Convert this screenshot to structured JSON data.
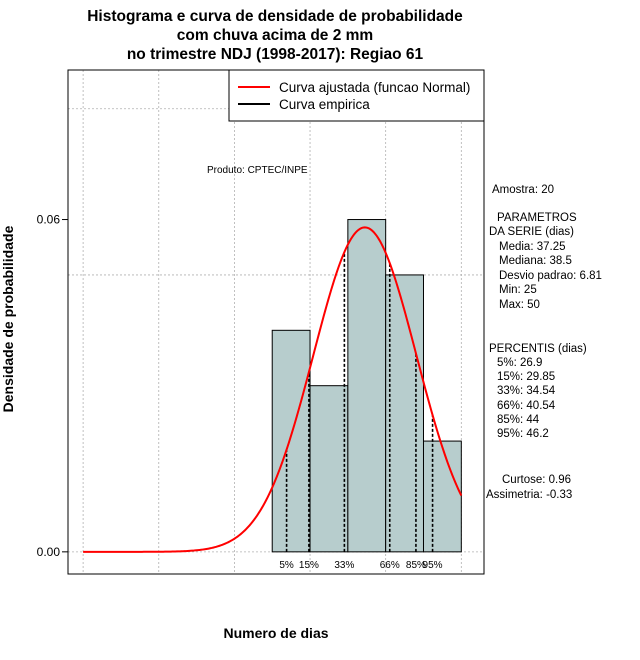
{
  "chart_data": {
    "type": "bar",
    "title_lines": [
      "Histograma e curva de densidade de probabilidade",
      "com chuva acima de 2 mm",
      "no trimestre NDJ (1998-2017): Regiao 61"
    ],
    "xlabel": "Numero de dias",
    "ylabel": "Densidade de probabilidade",
    "xlim": [
      -2,
      53
    ],
    "ylim": [
      -0.004,
      0.087
    ],
    "y_ticks": [
      0.0,
      0.06
    ],
    "y_tick_labels": [
      "0.00",
      "0.06"
    ],
    "grid": true,
    "grid_x": [
      0,
      10,
      20,
      30,
      40,
      50
    ],
    "grid_y": [
      0.0,
      0.05,
      0.08
    ],
    "histogram": {
      "bins": [
        {
          "start": 25,
          "end": 30,
          "density": 0.04
        },
        {
          "start": 30,
          "end": 35,
          "density": 0.03
        },
        {
          "start": 35,
          "end": 40,
          "density": 0.06
        },
        {
          "start": 40,
          "end": 45,
          "density": 0.05
        },
        {
          "start": 45,
          "end": 50,
          "density": 0.02
        }
      ],
      "fill": "#b7cdcd"
    },
    "normal_curve": {
      "mean": 37.25,
      "sd": 6.81,
      "x_range": [
        0,
        50
      ],
      "color": "#ff0000"
    },
    "percentile_lines": [
      {
        "label": "5%",
        "value": 26.9
      },
      {
        "label": "15%",
        "value": 29.85
      },
      {
        "label": "33%",
        "value": 34.54
      },
      {
        "label": "66%",
        "value": 40.54
      },
      {
        "label": "85%",
        "value": 44
      },
      {
        "label": "95%",
        "value": 46.2
      }
    ],
    "legend": {
      "position": "top-right",
      "entries": [
        {
          "label": "Curva ajustada (funcao Normal)",
          "color": "#ff0000"
        },
        {
          "label": "Curva empirica",
          "color": "#000000"
        }
      ]
    },
    "product_label": "Produto: CPTEC/INPE"
  },
  "side_panel": {
    "amostra": "Amostra: 20",
    "params_title_1": "PARAMETROS",
    "params_title_2": "DA SERIE (dias)",
    "params": [
      "Media: 37.25",
      "Mediana: 38.5",
      "Desvio padrao: 6.81",
      "Min: 25",
      "Max: 50"
    ],
    "percentis_title": "PERCENTIS (dias)",
    "percentis": [
      "5%: 26.9",
      "15%: 29.85",
      "33%: 34.54",
      "66%: 40.54",
      "85%: 44",
      "95%: 46.2"
    ],
    "curtose": "Curtose: 0.96",
    "assimetria": "Assimetria: -0.33"
  }
}
